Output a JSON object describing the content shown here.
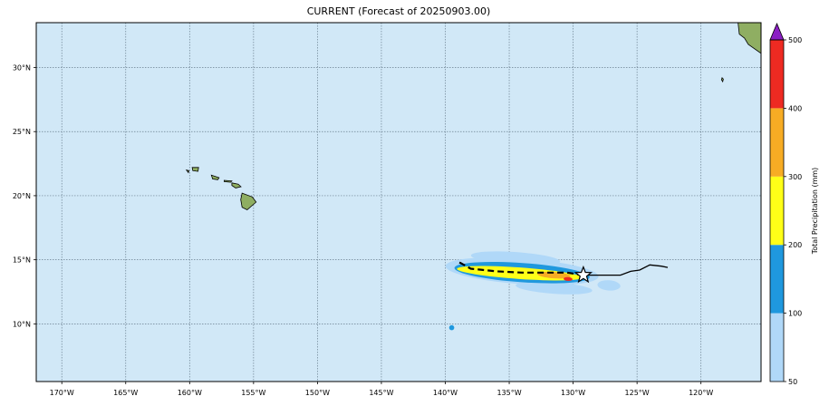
{
  "title": "CURRENT (Forecast of 20250903.00)",
  "colors": {
    "ocean": "#d1e8f7",
    "grid": "#6a7f8f",
    "land": "#8fae62",
    "track_observed": "#000000",
    "track_forecast": "#000000"
  },
  "map": {
    "lon_range": [
      -172,
      -115.3
    ],
    "lat_range": [
      5.5,
      33.5
    ],
    "lon_ticks": [
      {
        "value": -170,
        "label": "170°W"
      },
      {
        "value": -165,
        "label": "165°W"
      },
      {
        "value": -160,
        "label": "160°W"
      },
      {
        "value": -155,
        "label": "155°W"
      },
      {
        "value": -150,
        "label": "150°W"
      },
      {
        "value": -145,
        "label": "145°W"
      },
      {
        "value": -140,
        "label": "140°W"
      },
      {
        "value": -135,
        "label": "135°W"
      },
      {
        "value": -130,
        "label": "130°W"
      },
      {
        "value": -125,
        "label": "125°W"
      },
      {
        "value": -120,
        "label": "120°W"
      }
    ],
    "lat_ticks": [
      {
        "value": 10,
        "label": "10°N"
      },
      {
        "value": 15,
        "label": "15°N"
      },
      {
        "value": 20,
        "label": "20°N"
      },
      {
        "value": 25,
        "label": "25°N"
      },
      {
        "value": 30,
        "label": "30°N"
      }
    ],
    "current_position": {
      "lon": -129.2,
      "lat": 13.8
    },
    "observed_track": [
      [
        -129.2,
        13.8
      ],
      [
        -127.5,
        13.8
      ],
      [
        -126.3,
        13.8
      ],
      [
        -125.5,
        14.1
      ],
      [
        -124.8,
        14.2
      ],
      [
        -124,
        14.6
      ],
      [
        -123.1,
        14.5
      ],
      [
        -122.6,
        14.4
      ]
    ],
    "forecast_track": [
      [
        -129.2,
        13.8
      ],
      [
        -130.5,
        14.0
      ],
      [
        -132,
        14.0
      ],
      [
        -134,
        14.0
      ],
      [
        -136,
        14.1
      ],
      [
        -138,
        14.3
      ],
      [
        -138.9,
        14.8
      ]
    ],
    "islands": [
      {
        "name": "Hawaii",
        "points": [
          [
            -155.9,
            20.2
          ],
          [
            -155.1,
            19.9
          ],
          [
            -154.8,
            19.5
          ],
          [
            -155.5,
            18.9
          ],
          [
            -155.9,
            19.1
          ],
          [
            -156.0,
            19.7
          ]
        ]
      },
      {
        "name": "Maui",
        "points": [
          [
            -156.7,
            21.0
          ],
          [
            -156.2,
            20.9
          ],
          [
            -155.98,
            20.7
          ],
          [
            -156.4,
            20.6
          ],
          [
            -156.7,
            20.8
          ]
        ]
      },
      {
        "name": "Molokai",
        "points": [
          [
            -157.3,
            21.2
          ],
          [
            -156.7,
            21.15
          ],
          [
            -156.8,
            21.05
          ],
          [
            -157.3,
            21.1
          ]
        ]
      },
      {
        "name": "Oahu",
        "points": [
          [
            -158.3,
            21.6
          ],
          [
            -157.7,
            21.4
          ],
          [
            -157.8,
            21.25
          ],
          [
            -158.2,
            21.3
          ]
        ]
      },
      {
        "name": "Kauai",
        "points": [
          [
            -159.8,
            22.2
          ],
          [
            -159.3,
            22.2
          ],
          [
            -159.35,
            21.9
          ],
          [
            -159.75,
            21.95
          ]
        ]
      },
      {
        "name": "Niihau",
        "points": [
          [
            -160.25,
            22.0
          ],
          [
            -160.05,
            21.95
          ],
          [
            -160.1,
            21.8
          ]
        ]
      },
      {
        "name": "Guadalupe",
        "points": [
          [
            -118.35,
            29.2
          ],
          [
            -118.25,
            29.1
          ],
          [
            -118.3,
            28.9
          ],
          [
            -118.4,
            29.05
          ]
        ]
      },
      {
        "name": "Baja",
        "points": [
          [
            -117.1,
            33.5
          ],
          [
            -115.3,
            33.5
          ],
          [
            -115.3,
            31.1
          ],
          [
            -116.3,
            31.8
          ],
          [
            -116.6,
            32.3
          ],
          [
            -117.0,
            32.6
          ]
        ]
      }
    ],
    "precip_blobs": [
      {
        "category": "50-100",
        "lon": -134.0,
        "lat": 14.1,
        "rx": 6.0,
        "ry": 1.0
      },
      {
        "category": "50-100",
        "lon": -134.5,
        "lat": 15.1,
        "rx": 3.5,
        "ry": 0.5
      },
      {
        "category": "50-100",
        "lon": -131.5,
        "lat": 12.8,
        "rx": 3.0,
        "ry": 0.45
      },
      {
        "category": "50-100",
        "lon": -127.2,
        "lat": 13.0,
        "rx": 0.9,
        "ry": 0.4
      },
      {
        "category": "100-200",
        "lon": -134.0,
        "lat": 14.0,
        "rx": 5.3,
        "ry": 0.75
      },
      {
        "category": "100-200",
        "lon": -139.5,
        "lat": 9.7,
        "rx": 0.2,
        "ry": 0.2
      },
      {
        "category": "200-300",
        "lon": -134.2,
        "lat": 13.95,
        "rx": 4.9,
        "ry": 0.45
      },
      {
        "category": "300-400",
        "lon": -131.5,
        "lat": 13.8,
        "rx": 1.3,
        "ry": 0.25
      },
      {
        "category": "400-500",
        "lon": -130.4,
        "lat": 13.5,
        "rx": 0.35,
        "ry": 0.15
      }
    ]
  },
  "colorbar": {
    "label": "Total Precipitation (mm)",
    "min": 50,
    "max": 500,
    "extend": "max",
    "extend_color": "#8b1fc4",
    "segments": [
      {
        "from": 50,
        "to": 100,
        "color": "#b0d8f8"
      },
      {
        "from": 100,
        "to": 200,
        "color": "#1f98de"
      },
      {
        "from": 200,
        "to": 300,
        "color": "#ffff18"
      },
      {
        "from": 300,
        "to": 400,
        "color": "#f7ac24"
      },
      {
        "from": 400,
        "to": 500,
        "color": "#ee2a22"
      }
    ],
    "ticks": [
      {
        "value": 50,
        "label": "50"
      },
      {
        "value": 100,
        "label": "100"
      },
      {
        "value": 200,
        "label": "200"
      },
      {
        "value": 300,
        "label": "300"
      },
      {
        "value": 400,
        "label": "400"
      },
      {
        "value": 500,
        "label": "500"
      }
    ]
  }
}
